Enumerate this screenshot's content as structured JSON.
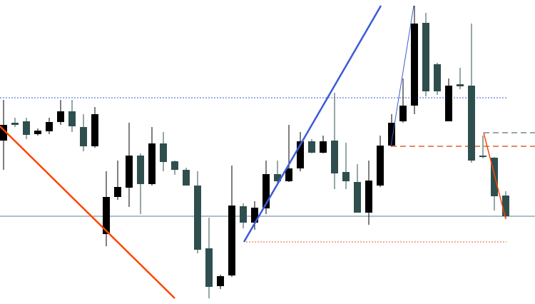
{
  "chart_data": {
    "type": "candlestick",
    "up_color": "#000000",
    "down_color": "#2f4f4f",
    "ylim": [
      0,
      426
    ],
    "open": [
      229,
      254,
      256,
      238,
      242,
      255,
      270,
      248,
      221,
      98,
      150,
      163,
      208,
      168,
      225,
      200,
      188,
      166,
      78,
      25,
      40,
      137,
      114,
      134,
      182,
      172,
      190,
      228,
      212,
      229,
      185,
      171,
      128,
      166,
      222,
      256,
      278,
      394,
      336,
      256,
      308,
      306,
      208,
      205,
      152
    ],
    "high": [
      286,
      261,
      261,
      246,
      261,
      286,
      286,
      266,
      276,
      186,
      201,
      254,
      211,
      248,
      241,
      201,
      191,
      186,
      121,
      41,
      194,
      141,
      144,
      201,
      201,
      251,
      241,
      231,
      236,
      296,
      226,
      196,
      201,
      236,
      266,
      316,
      418,
      408,
      338,
      316,
      331,
      393,
      236,
      206,
      158
    ],
    "low": [
      188,
      248,
      231,
      236,
      238,
      251,
      241,
      214,
      219,
      81,
      146,
      136,
      126,
      166,
      186,
      181,
      166,
      71,
      8,
      21,
      38,
      106,
      104,
      126,
      166,
      171,
      186,
      211,
      211,
      161,
      161,
      128,
      111,
      164,
      221,
      254,
      266,
      291,
      293,
      256,
      301,
      198,
      204,
      131,
      119
    ],
    "close": [
      251,
      251,
      237,
      243,
      255,
      270,
      249,
      221,
      266,
      150,
      164,
      208,
      168,
      225,
      199,
      188,
      166,
      76,
      24,
      39,
      138,
      114,
      135,
      182,
      172,
      190,
      228,
      212,
      228,
      183,
      172,
      128,
      173,
      222,
      254,
      278,
      393,
      298,
      298,
      306,
      305,
      201,
      206,
      151,
      123
    ]
  }
}
